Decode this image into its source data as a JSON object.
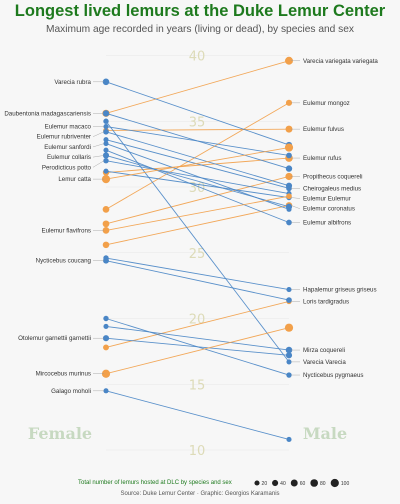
{
  "title": "Longest lived lemurs at the Duke Lemur Center",
  "subtitle": "Maximum age recorded in years (living or dead), by species and sex",
  "side_labels": {
    "left": "Female",
    "right": "Male"
  },
  "legend": {
    "title": "Total number of lemurs hosted at DLC by species and sex",
    "sizes": [
      20,
      40,
      60,
      80,
      100
    ]
  },
  "caption": "Source: Duke Lemur Center · Graphic: Georgios Karamanis",
  "colors": {
    "title": "#1e7a1e",
    "female_larger": "#f2a04a",
    "male_larger": "#4a86c6",
    "axis_text": "#dddbb8",
    "side_label": "#c7d9c1"
  },
  "chart_data": {
    "type": "slope",
    "x": [
      "Female",
      "Male"
    ],
    "ylim": [
      9,
      41
    ],
    "yticks": [
      10,
      15,
      20,
      25,
      30,
      35,
      40
    ],
    "series": [
      {
        "name": "Varecia variegata variegata",
        "female": 35.6,
        "male": 39.6,
        "n_female": 70,
        "n_male": 90
      },
      {
        "name": "Eulemur mongoz",
        "female": 28.3,
        "male": 36.4,
        "n_female": 55,
        "n_male": 40
      },
      {
        "name": "Eulemur fulvus",
        "female": 34.3,
        "male": 34.4,
        "n_female": 30,
        "n_male": 60
      },
      {
        "name": "Eulemur rufus",
        "female": 31.1,
        "male": 32.2,
        "n_female": 45,
        "n_male": 80
      },
      {
        "name": "Propithecus coquereli",
        "female": 27.2,
        "male": 30.8,
        "n_female": 55,
        "n_male": 70
      },
      {
        "name": "Cheirogaleus medius",
        "female": 33.6,
        "male": 29.9,
        "n_female": 20,
        "n_male": 30
      },
      {
        "name": "Eulemur Eulemur",
        "female": 31.2,
        "male": 29.2,
        "n_female": 20,
        "n_male": 25
      },
      {
        "name": "Eulemur coronatus",
        "female": 25.6,
        "male": 28.6,
        "n_female": 50,
        "n_male": 50
      },
      {
        "name": "Eulemur albifrons",
        "female": 32.8,
        "male": 27.3,
        "n_female": 20,
        "n_male": 30
      },
      {
        "name": "Hapalemur griseus griseus",
        "female": 24.6,
        "male": 22.2,
        "n_female": 25,
        "n_male": 20
      },
      {
        "name": "Loris tardigradus",
        "female": 17.8,
        "male": 21.3,
        "n_female": 35,
        "n_male": 25
      },
      {
        "name": "Mirza coquereli",
        "female": 19.4,
        "male": 17.6,
        "n_female": 20,
        "n_male": 50
      },
      {
        "name": "Varecia Varecia",
        "female": 35.0,
        "male": 16.7,
        "n_female": 25,
        "n_male": 20
      },
      {
        "name": "Nycticebus pygmaeus",
        "female": 20.0,
        "male": 15.7,
        "n_female": 25,
        "n_male": 25
      },
      {
        "name": "Varecia rubra",
        "female": 38.0,
        "male": 33.2,
        "n_female": 50,
        "n_male": 40
      },
      {
        "name": "Daubentonia madagascariensis",
        "female": 35.6,
        "male": 31.4,
        "n_female": 45,
        "n_male": 45
      },
      {
        "name": "Eulemur macaco",
        "female": 34.6,
        "male": 32.4,
        "n_female": 20,
        "n_male": 30
      },
      {
        "name": "Eulemur rubriventer",
        "female": 34.2,
        "male": 30.1,
        "n_female": 30,
        "n_male": 40
      },
      {
        "name": "Eulemur sanfordi",
        "female": 33.3,
        "male": 28.3,
        "n_female": 20,
        "n_male": 20
      },
      {
        "name": "Eulemur collaris",
        "female": 32.4,
        "male": 28.5,
        "n_female": 40,
        "n_male": 40
      },
      {
        "name": "Perodicticus potto",
        "female": 32.0,
        "male": 29.5,
        "n_female": 25,
        "n_male": 20
      },
      {
        "name": "Lemur catta",
        "female": 30.6,
        "male": 33.0,
        "n_female": 100,
        "n_male": 100
      },
      {
        "name": "Eulemur flavifrons",
        "female": 26.7,
        "male": 29.3,
        "n_female": 55,
        "n_male": 30
      },
      {
        "name": "Nycticebus coucang",
        "female": 24.4,
        "male": 21.4,
        "n_female": 35,
        "n_male": 30
      },
      {
        "name": "Otolemur garnettii garnettii",
        "female": 18.5,
        "male": 17.2,
        "n_female": 40,
        "n_male": 40
      },
      {
        "name": "Mircocebus murinus",
        "female": 15.8,
        "male": 19.3,
        "n_female": 100,
        "n_male": 100
      },
      {
        "name": "Galago moholi",
        "female": 14.5,
        "male": 10.8,
        "n_female": 20,
        "n_male": 20
      }
    ],
    "left_labels": [
      "Varecia rubra",
      "Daubentonia madagascariensis",
      "Eulemur macaco",
      "Eulemur rubriventer",
      "Eulemur sanfordi",
      "Eulemur collaris",
      "Perodicticus potto",
      "Lemur catta",
      "Eulemur flavifrons",
      "Nycticebus coucang",
      "Otolemur garnettii garnettii",
      "Mircocebus murinus",
      "Galago moholi"
    ],
    "right_labels": [
      "Varecia variegata variegata",
      "Eulemur mongoz",
      "Eulemur fulvus",
      "Eulemur rufus",
      "Propithecus coquereli",
      "Cheirogaleus medius",
      "Eulemur Eulemur",
      "Eulemur coronatus",
      "Eulemur albifrons",
      "Hapalemur griseus griseus",
      "Loris tardigradus",
      "Mirza coquereli",
      "Varecia Varecia",
      "Nycticebus pygmaeus"
    ]
  }
}
